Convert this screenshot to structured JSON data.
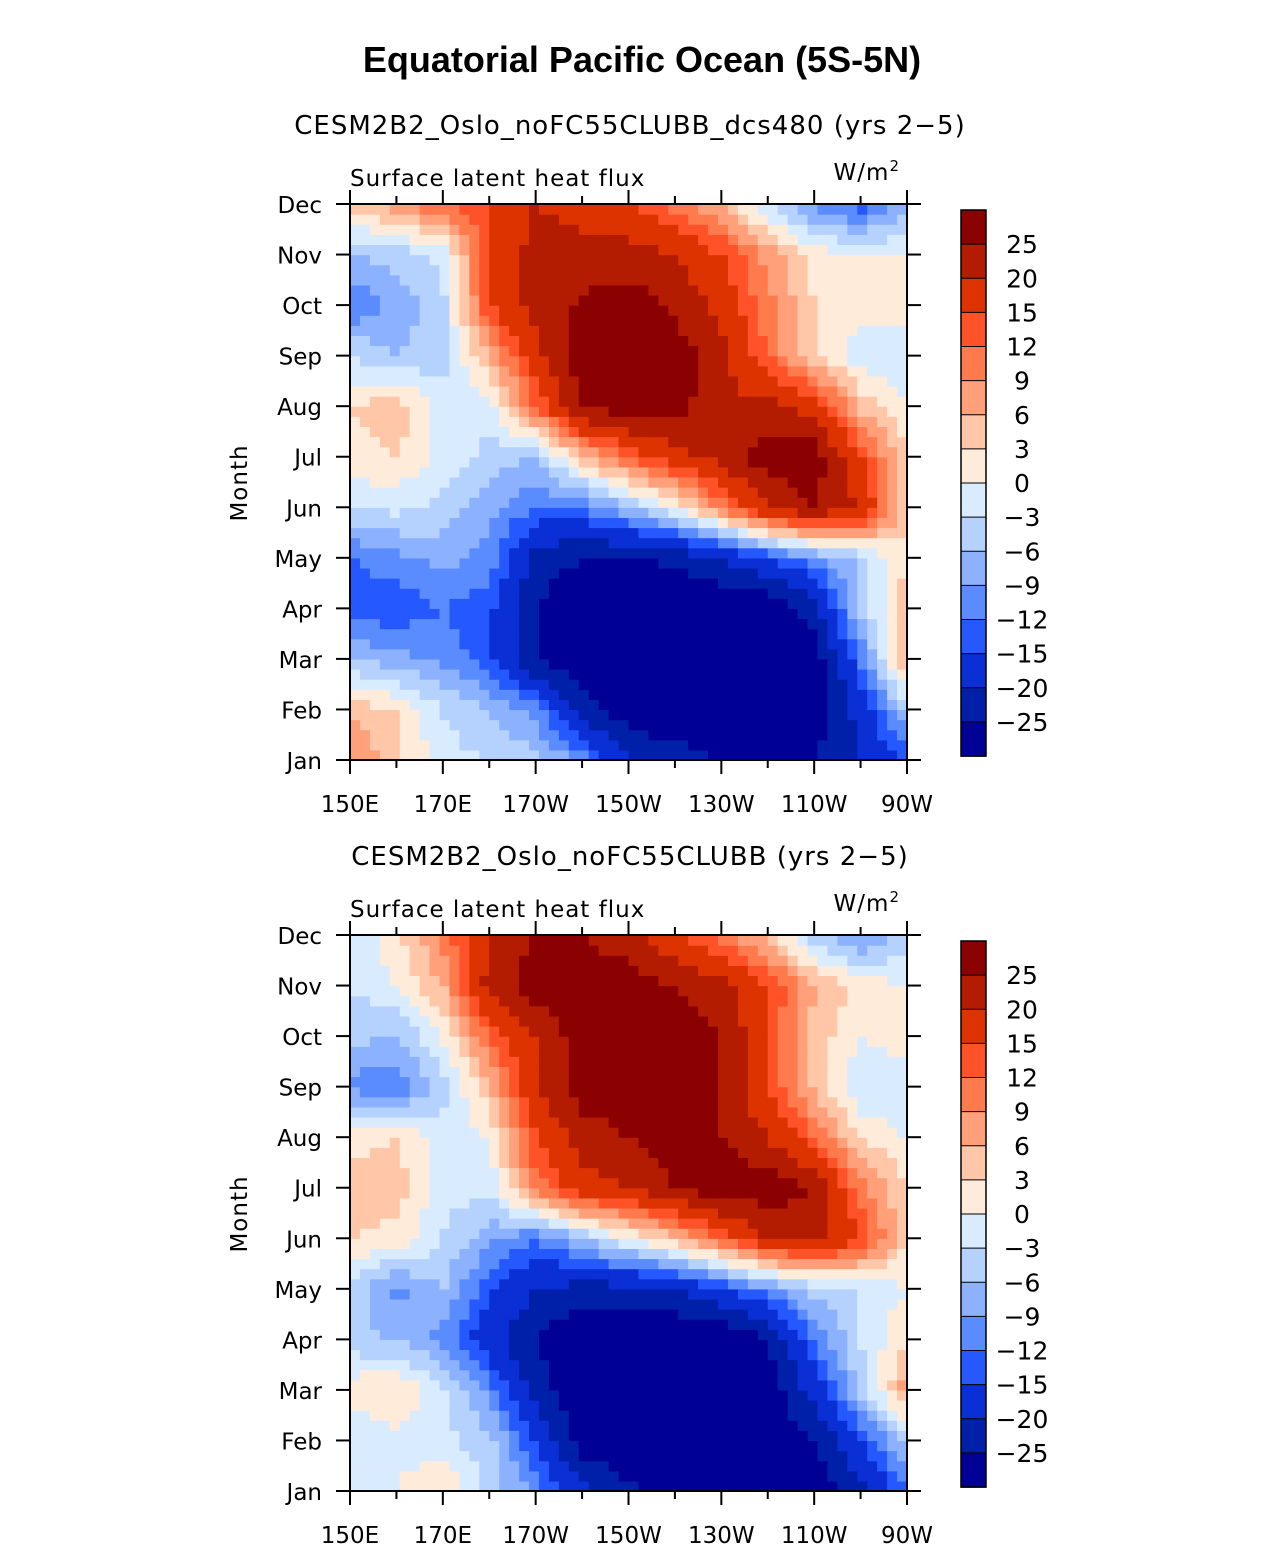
{
  "figure": {
    "title": "Equatorial Pacific Ocean (5S-5N)"
  },
  "colorbar": {
    "labels": [
      "25",
      "20",
      "15",
      "12",
      "9",
      "6",
      "3",
      "0",
      "−3",
      "−6",
      "−9",
      "−12",
      "−15",
      "−20",
      "−25"
    ],
    "colors": [
      "#8b0000",
      "#b31c00",
      "#dd3300",
      "#ff5228",
      "#ff7b4d",
      "#ffa07a",
      "#ffc6a8",
      "#ffebda",
      "#d9ebff",
      "#b5d2ff",
      "#8cb2ff",
      "#5a8cff",
      "#2559ff",
      "#0a2fd5",
      "#0020aa",
      "#000096"
    ]
  },
  "chart_data": [
    {
      "type": "heatmap",
      "title": "CESM2B2_Oslo_noFC55CLUBB_dcs480 (yrs 2−5)",
      "left_string": "Surface latent heat flux",
      "right_string": "W/m",
      "right_superscript": "2",
      "ylabel": "Month",
      "x_ticks": [
        "150E",
        "170E",
        "170W",
        "150W",
        "130W",
        "110W",
        "90W"
      ],
      "y_ticks": [
        "Jan",
        "Feb",
        "Mar",
        "Apr",
        "May",
        "Jun",
        "Jul",
        "Aug",
        "Sep",
        "Oct",
        "Nov",
        "Dec"
      ],
      "xlim": [
        150,
        270
      ],
      "ylim": [
        1,
        12
      ],
      "lon": [
        150,
        160,
        170,
        180,
        190,
        200,
        210,
        220,
        230,
        240,
        250,
        260,
        270
      ],
      "values": [
        [
          10,
          4,
          -2,
          -3,
          -5,
          -10,
          -20,
          -22,
          -25,
          -25,
          -25,
          -20,
          -15
        ],
        [
          5,
          3,
          -3,
          -6,
          -10,
          -22,
          -28,
          -30,
          -30,
          -30,
          -28,
          -18,
          -5
        ],
        [
          -6,
          -8,
          -10,
          -14,
          -25,
          -30,
          -30,
          -30,
          -30,
          -30,
          -28,
          -12,
          8
        ],
        [
          -14,
          -14,
          -12,
          -14,
          -25,
          -30,
          -30,
          -30,
          -30,
          -30,
          -22,
          -5,
          5
        ],
        [
          -12,
          -10,
          -8,
          -10,
          -22,
          -25,
          -25,
          -24,
          -20,
          -15,
          -10,
          -5,
          3
        ],
        [
          -3,
          -2,
          -4,
          -8,
          -12,
          -12,
          -6,
          0,
          10,
          20,
          25,
          20,
          3
        ],
        [
          2,
          3,
          -1,
          -4,
          -6,
          5,
          12,
          18,
          22,
          28,
          28,
          15,
          3
        ],
        [
          3,
          5,
          -2,
          -2,
          12,
          25,
          28,
          28,
          20,
          22,
          18,
          5,
          0
        ],
        [
          -3,
          -6,
          -4,
          6,
          18,
          28,
          28,
          28,
          22,
          12,
          3,
          -2,
          -3
        ],
        [
          -12,
          -8,
          -4,
          15,
          22,
          26,
          28,
          24,
          18,
          10,
          3,
          1,
          2
        ],
        [
          -6,
          -5,
          -2,
          15,
          22,
          22,
          22,
          20,
          15,
          8,
          2,
          0,
          0
        ],
        [
          4,
          8,
          12,
          15,
          20,
          18,
          16,
          10,
          6,
          -3,
          -10,
          -14,
          -6
        ]
      ]
    },
    {
      "type": "heatmap",
      "title": "CESM2B2_Oslo_noFC55CLUBB (yrs 2−5)",
      "left_string": "Surface latent heat flux",
      "right_string": "W/m",
      "right_superscript": "2",
      "ylabel": "Month",
      "x_ticks": [
        "150E",
        "170E",
        "170W",
        "150W",
        "130W",
        "110W",
        "90W"
      ],
      "y_ticks": [
        "Jan",
        "Feb",
        "Mar",
        "Apr",
        "May",
        "Jun",
        "Jul",
        "Aug",
        "Sep",
        "Oct",
        "Nov",
        "Dec"
      ],
      "xlim": [
        150,
        270
      ],
      "ylim": [
        1,
        12
      ],
      "lon": [
        150,
        160,
        170,
        180,
        190,
        200,
        210,
        220,
        230,
        240,
        250,
        260,
        270
      ],
      "values": [
        [
          -2,
          0,
          3,
          -4,
          -10,
          -18,
          -24,
          -28,
          -30,
          -25,
          -28,
          -22,
          -12
        ],
        [
          -3,
          -1,
          -2,
          -5,
          -15,
          -28,
          -30,
          -30,
          -30,
          -28,
          -25,
          -15,
          -5
        ],
        [
          2,
          3,
          -2,
          -10,
          -22,
          -30,
          -30,
          -30,
          -30,
          -28,
          -18,
          -5,
          8
        ],
        [
          -5,
          -6,
          -10,
          -18,
          -25,
          -30,
          -30,
          -30,
          -30,
          -25,
          -12,
          -3,
          3
        ],
        [
          -4,
          -10,
          -6,
          -14,
          -20,
          -22,
          -22,
          -20,
          -15,
          -10,
          -5,
          -3,
          0
        ],
        [
          3,
          2,
          -3,
          -8,
          -12,
          -6,
          0,
          5,
          12,
          20,
          22,
          15,
          3
        ],
        [
          4,
          5,
          -2,
          -2,
          10,
          18,
          20,
          25,
          28,
          28,
          25,
          10,
          3
        ],
        [
          2,
          3,
          -2,
          0,
          15,
          22,
          25,
          28,
          25,
          20,
          12,
          3,
          0
        ],
        [
          -10,
          -12,
          -4,
          5,
          20,
          28,
          28,
          28,
          25,
          15,
          5,
          -3,
          -3
        ],
        [
          -5,
          -6,
          0,
          12,
          20,
          28,
          28,
          28,
          25,
          15,
          5,
          0,
          2
        ],
        [
          -3,
          0,
          6,
          22,
          28,
          28,
          28,
          25,
          22,
          15,
          6,
          2,
          0
        ],
        [
          -2,
          2,
          10,
          20,
          25,
          25,
          22,
          15,
          10,
          5,
          -5,
          -10,
          -4
        ]
      ]
    }
  ]
}
